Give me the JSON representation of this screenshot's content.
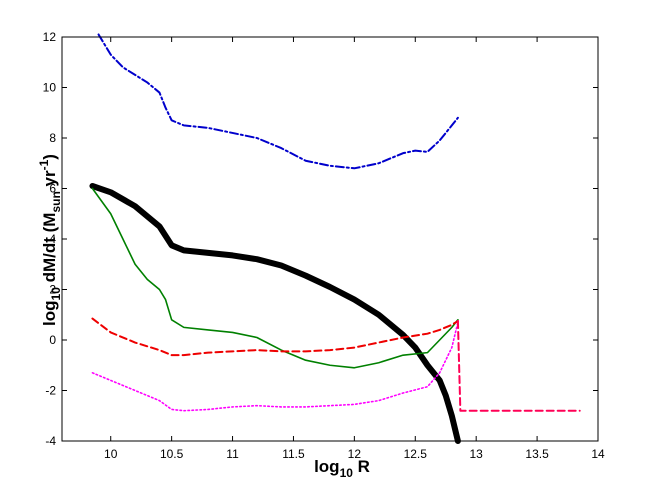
{
  "chart_data": {
    "type": "line",
    "xlabel": {
      "prefix": "log",
      "sub": "10",
      "text": " R"
    },
    "ylabel": {
      "prefix": "log",
      "sub1": "10",
      "mid": " dM/dt (M",
      "sub2": "sun",
      "mid2": " yr",
      "sup": "-1",
      "end": ")"
    },
    "xlim": [
      9.6,
      14
    ],
    "ylim": [
      -4,
      12
    ],
    "xticks": [
      "10",
      "10.5",
      "11",
      "11.5",
      "12",
      "12.5",
      "13",
      "13.5",
      "14"
    ],
    "yticks": [
      "-4",
      "-2",
      "0",
      "2",
      "4",
      "6",
      "8",
      "10",
      "12"
    ],
    "series": [
      {
        "color": "#000000",
        "style": "solid",
        "width": 6,
        "points": [
          [
            9.85,
            6.1
          ],
          [
            10.0,
            5.85
          ],
          [
            10.2,
            5.3
          ],
          [
            10.4,
            4.5
          ],
          [
            10.5,
            3.75
          ],
          [
            10.6,
            3.55
          ],
          [
            10.8,
            3.45
          ],
          [
            11.0,
            3.35
          ],
          [
            11.2,
            3.2
          ],
          [
            11.4,
            2.95
          ],
          [
            11.6,
            2.55
          ],
          [
            11.8,
            2.1
          ],
          [
            12.0,
            1.6
          ],
          [
            12.2,
            1.0
          ],
          [
            12.4,
            0.2
          ],
          [
            12.5,
            -0.3
          ],
          [
            12.6,
            -1.0
          ],
          [
            12.7,
            -1.6
          ],
          [
            12.75,
            -2.2
          ],
          [
            12.8,
            -3.0
          ],
          [
            12.85,
            -4.0
          ]
        ]
      },
      {
        "color": "#0000cc",
        "style": "dashdot",
        "width": 2,
        "points": [
          [
            9.9,
            12.1
          ],
          [
            10.0,
            11.3
          ],
          [
            10.1,
            10.8
          ],
          [
            10.2,
            10.5
          ],
          [
            10.3,
            10.2
          ],
          [
            10.4,
            9.8
          ],
          [
            10.45,
            9.2
          ],
          [
            10.5,
            8.7
          ],
          [
            10.6,
            8.5
          ],
          [
            10.8,
            8.4
          ],
          [
            11.0,
            8.2
          ],
          [
            11.2,
            8.0
          ],
          [
            11.4,
            7.6
          ],
          [
            11.6,
            7.1
          ],
          [
            11.8,
            6.9
          ],
          [
            12.0,
            6.8
          ],
          [
            12.2,
            7.0
          ],
          [
            12.4,
            7.4
          ],
          [
            12.5,
            7.5
          ],
          [
            12.6,
            7.45
          ],
          [
            12.7,
            7.9
          ],
          [
            12.8,
            8.5
          ],
          [
            12.85,
            8.8
          ]
        ]
      },
      {
        "color": "#008000",
        "style": "solid",
        "width": 1.6,
        "points": [
          [
            9.85,
            6.0
          ],
          [
            10.0,
            5.0
          ],
          [
            10.1,
            4.0
          ],
          [
            10.2,
            3.0
          ],
          [
            10.3,
            2.4
          ],
          [
            10.4,
            2.0
          ],
          [
            10.45,
            1.6
          ],
          [
            10.5,
            0.8
          ],
          [
            10.6,
            0.5
          ],
          [
            10.8,
            0.4
          ],
          [
            11.0,
            0.3
          ],
          [
            11.2,
            0.1
          ],
          [
            11.4,
            -0.4
          ],
          [
            11.6,
            -0.8
          ],
          [
            11.8,
            -1.0
          ],
          [
            12.0,
            -1.1
          ],
          [
            12.2,
            -0.9
          ],
          [
            12.4,
            -0.6
          ],
          [
            12.6,
            -0.5
          ],
          [
            12.7,
            0.0
          ],
          [
            12.8,
            0.5
          ],
          [
            12.85,
            0.8
          ]
        ]
      },
      {
        "color": "#ee0000",
        "style": "dashed",
        "width": 2,
        "points": [
          [
            9.85,
            0.85
          ],
          [
            10.0,
            0.3
          ],
          [
            10.2,
            -0.1
          ],
          [
            10.4,
            -0.4
          ],
          [
            10.5,
            -0.6
          ],
          [
            10.6,
            -0.6
          ],
          [
            10.8,
            -0.5
          ],
          [
            11.0,
            -0.45
          ],
          [
            11.2,
            -0.4
          ],
          [
            11.4,
            -0.45
          ],
          [
            11.6,
            -0.45
          ],
          [
            11.8,
            -0.4
          ],
          [
            12.0,
            -0.3
          ],
          [
            12.2,
            -0.1
          ],
          [
            12.4,
            0.1
          ],
          [
            12.6,
            0.25
          ],
          [
            12.7,
            0.4
          ],
          [
            12.8,
            0.6
          ],
          [
            12.85,
            0.75
          ]
        ]
      },
      {
        "color": "#ff00ff",
        "style": "dotted",
        "width": 1.6,
        "points": [
          [
            9.85,
            -1.3
          ],
          [
            10.0,
            -1.6
          ],
          [
            10.2,
            -2.0
          ],
          [
            10.4,
            -2.4
          ],
          [
            10.5,
            -2.75
          ],
          [
            10.6,
            -2.8
          ],
          [
            10.8,
            -2.75
          ],
          [
            11.0,
            -2.65
          ],
          [
            11.2,
            -2.6
          ],
          [
            11.4,
            -2.65
          ],
          [
            11.6,
            -2.65
          ],
          [
            11.8,
            -2.6
          ],
          [
            12.0,
            -2.55
          ],
          [
            12.2,
            -2.4
          ],
          [
            12.4,
            -2.1
          ],
          [
            12.6,
            -1.85
          ],
          [
            12.7,
            -1.3
          ],
          [
            12.8,
            -0.3
          ],
          [
            12.85,
            0.7
          ]
        ]
      },
      {
        "color": "#ff0055",
        "style": "dashed",
        "width": 2,
        "points": [
          [
            12.85,
            0.75
          ],
          [
            12.87,
            -2.8
          ],
          [
            13.85,
            -2.8
          ]
        ]
      }
    ]
  }
}
